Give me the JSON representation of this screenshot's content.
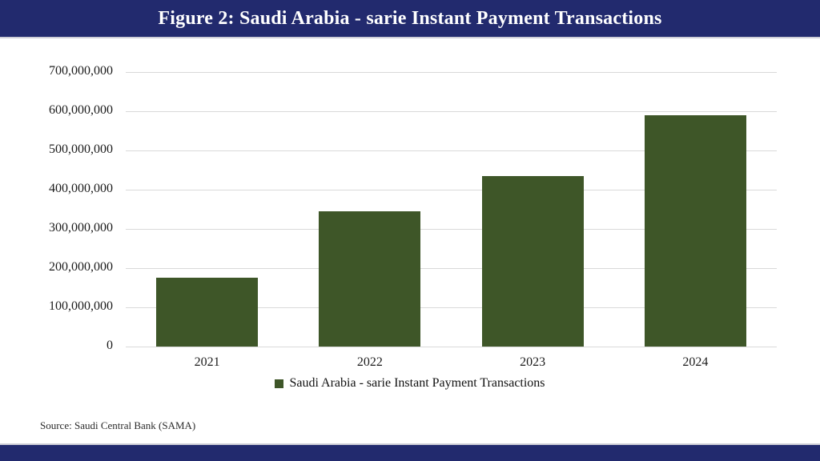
{
  "header": {
    "title": "Figure 2: Saudi Arabia - sarie Instant Payment Transactions"
  },
  "legend": {
    "label": "Saudi Arabia - sarie Instant Payment Transactions"
  },
  "source": {
    "text": "Source: Saudi Central Bank (SAMA)"
  },
  "colors": {
    "header_bg": "#222a6e",
    "footer_bg": "#222a6e",
    "bar": "#3e5628",
    "gridline": "#d9d9d9",
    "title_text": "#ffffff"
  },
  "chart_data": {
    "type": "bar",
    "title": "Figure 2: Saudi Arabia - sarie Instant Payment Transactions",
    "categories": [
      "2021",
      "2022",
      "2023",
      "2024"
    ],
    "series": [
      {
        "name": "Saudi Arabia - sarie Instant Payment Transactions",
        "values": [
          175000000,
          345000000,
          435000000,
          590000000
        ]
      }
    ],
    "xlabel": "",
    "ylabel": "",
    "ylim": [
      0,
      700000000
    ],
    "yticks": [
      {
        "value": 0,
        "label": "0"
      },
      {
        "value": 100000000,
        "label": "100,000,000"
      },
      {
        "value": 200000000,
        "label": "200,000,000"
      },
      {
        "value": 300000000,
        "label": "300,000,000"
      },
      {
        "value": 400000000,
        "label": "400,000,000"
      },
      {
        "value": 500000000,
        "label": "500,000,000"
      },
      {
        "value": 600000000,
        "label": "600,000,000"
      },
      {
        "value": 700000000,
        "label": "700,000,000"
      }
    ],
    "grid": true,
    "legend_position": "bottom",
    "bar_color": "#3e5628"
  }
}
